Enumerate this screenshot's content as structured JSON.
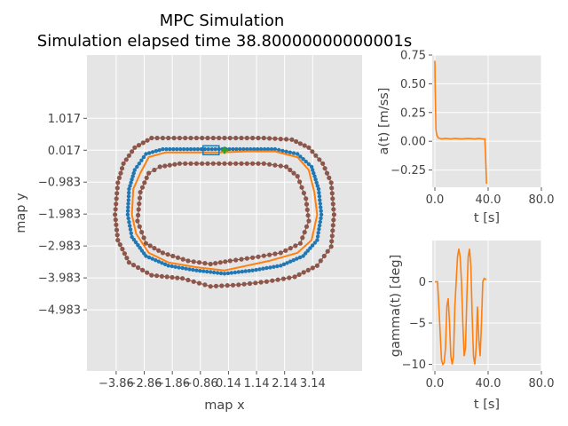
{
  "figure": {
    "title_line1": "MPC Simulation",
    "title_line2": "Simulation elapsed time 38.80000000000001s"
  },
  "colors": {
    "background": "#ffffff",
    "panel": "#e5e5e5",
    "grid": "#ffffff",
    "track_boundary": "#8c564b",
    "reference": "#1f77b4",
    "trajectory": "#ff7f0e",
    "vehicle": "#1f77b4",
    "target": "#2ca02c"
  },
  "chart_data": [
    {
      "id": "map",
      "type": "line",
      "xlabel": "map x",
      "ylabel": "map y",
      "xlim": [
        -4.9,
        4.9
      ],
      "ylim": [
        -6.9,
        3.0
      ],
      "xticks": [
        -3.86,
        -2.86,
        -1.86,
        -0.86,
        0.14,
        1.14,
        2.14,
        3.14
      ],
      "xtick_labels": [
        "−3.86",
        "−2.86",
        "−1.86",
        "−0.86",
        "0.14",
        "1.14",
        "2.14",
        "3.14"
      ],
      "yticks": [
        1.017,
        0.017,
        -0.983,
        -1.983,
        -2.983,
        -3.983,
        -4.983
      ],
      "ytick_labels": [
        "1.017",
        "0.017",
        "−0.983",
        "−1.983",
        "−2.983",
        "−3.983",
        "−4.983"
      ],
      "series": [
        {
          "role": "outer_boundary",
          "points": [
            [
              -3.6,
              -0.4
            ],
            [
              -3.2,
              0.1
            ],
            [
              -2.6,
              0.4
            ],
            [
              -1.6,
              0.4
            ],
            [
              -0.6,
              0.4
            ],
            [
              0.4,
              0.4
            ],
            [
              1.4,
              0.4
            ],
            [
              2.4,
              0.35
            ],
            [
              3.0,
              0.1
            ],
            [
              3.5,
              -0.4
            ],
            [
              3.8,
              -1.0
            ],
            [
              3.9,
              -2.0
            ],
            [
              3.8,
              -3.0
            ],
            [
              3.3,
              -3.6
            ],
            [
              2.5,
              -3.95
            ],
            [
              1.5,
              -4.1
            ],
            [
              0.5,
              -4.2
            ],
            [
              -0.5,
              -4.25
            ],
            [
              -1.5,
              -4.0
            ],
            [
              -2.6,
              -3.9
            ],
            [
              -3.4,
              -3.5
            ],
            [
              -3.8,
              -2.8
            ],
            [
              -3.9,
              -2.0
            ],
            [
              -3.8,
              -1.0
            ],
            [
              -3.6,
              -0.4
            ]
          ]
        },
        {
          "role": "inner_boundary",
          "points": [
            [
              -2.7,
              -0.7
            ],
            [
              -2.3,
              -0.5
            ],
            [
              -1.6,
              -0.4
            ],
            [
              -0.6,
              -0.4
            ],
            [
              0.4,
              -0.4
            ],
            [
              1.4,
              -0.4
            ],
            [
              2.2,
              -0.5
            ],
            [
              2.6,
              -0.8
            ],
            [
              2.9,
              -1.5
            ],
            [
              3.0,
              -2.2
            ],
            [
              2.7,
              -2.9
            ],
            [
              2.0,
              -3.2
            ],
            [
              1.0,
              -3.35
            ],
            [
              0.2,
              -3.45
            ],
            [
              -0.5,
              -3.55
            ],
            [
              -1.3,
              -3.45
            ],
            [
              -2.2,
              -3.2
            ],
            [
              -2.8,
              -2.9
            ],
            [
              -3.1,
              -2.2
            ],
            [
              -3.0,
              -1.3
            ],
            [
              -2.7,
              -0.7
            ]
          ]
        },
        {
          "role": "reference_path",
          "points": [
            [
              -3.2,
              -0.6
            ],
            [
              -2.8,
              -0.1
            ],
            [
              -2.2,
              0.05
            ],
            [
              -1.2,
              0.05
            ],
            [
              -0.2,
              0.05
            ],
            [
              0.8,
              0.05
            ],
            [
              1.8,
              0.05
            ],
            [
              2.6,
              -0.1
            ],
            [
              3.1,
              -0.5
            ],
            [
              3.35,
              -1.2
            ],
            [
              3.45,
              -2.0
            ],
            [
              3.3,
              -2.8
            ],
            [
              2.8,
              -3.3
            ],
            [
              2.0,
              -3.6
            ],
            [
              1.0,
              -3.75
            ],
            [
              0.0,
              -3.85
            ],
            [
              -1.0,
              -3.75
            ],
            [
              -2.0,
              -3.6
            ],
            [
              -2.8,
              -3.3
            ],
            [
              -3.3,
              -2.7
            ],
            [
              -3.45,
              -2.0
            ],
            [
              -3.4,
              -1.2
            ],
            [
              -3.2,
              -0.6
            ]
          ]
        },
        {
          "role": "driven_trajectory",
          "points": [
            [
              -3.0,
              -0.7
            ],
            [
              -2.7,
              -0.2
            ],
            [
              -2.1,
              -0.05
            ],
            [
              -1.2,
              -0.05
            ],
            [
              -0.2,
              -0.05
            ],
            [
              0.8,
              -0.02
            ],
            [
              1.8,
              -0.02
            ],
            [
              2.6,
              -0.2
            ],
            [
              3.0,
              -0.6
            ],
            [
              3.2,
              -1.3
            ],
            [
              3.3,
              -2.0
            ],
            [
              3.1,
              -2.8
            ],
            [
              2.6,
              -3.2
            ],
            [
              1.6,
              -3.45
            ],
            [
              0.8,
              -3.6
            ],
            [
              0.0,
              -3.75
            ],
            [
              -1.0,
              -3.65
            ],
            [
              -2.0,
              -3.5
            ],
            [
              -2.7,
              -3.2
            ],
            [
              -3.15,
              -2.6
            ],
            [
              -3.3,
              -2.0
            ],
            [
              -3.25,
              -1.2
            ],
            [
              -3.0,
              -0.7
            ]
          ]
        },
        {
          "role": "vehicle",
          "center": [
            -0.48,
            0.017
          ]
        },
        {
          "role": "target",
          "point": [
            0.0,
            0.017
          ]
        }
      ]
    },
    {
      "id": "accel",
      "type": "line",
      "xlabel": "t [s]",
      "ylabel": "a(t) [m/ss]",
      "xlim": [
        -2,
        80
      ],
      "ylim": [
        -0.4,
        0.75
      ],
      "xticks": [
        0,
        40,
        80
      ],
      "xtick_labels": [
        "0.0",
        "40.0",
        "80.0"
      ],
      "yticks": [
        0.75,
        0.5,
        0.25,
        0.0,
        -0.25
      ],
      "ytick_labels": [
        "0.75",
        "0.50",
        "0.25",
        "0.00",
        "−0.25"
      ],
      "series": [
        {
          "points": [
            [
              0,
              0.7
            ],
            [
              0.3,
              0.45
            ],
            [
              0.8,
              0.1
            ],
            [
              1.5,
              0.05
            ],
            [
              2.5,
              0.03
            ],
            [
              5,
              0.02
            ],
            [
              8,
              0.025
            ],
            [
              12,
              0.02
            ],
            [
              15,
              0.025
            ],
            [
              20,
              0.02
            ],
            [
              25,
              0.025
            ],
            [
              30,
              0.02
            ],
            [
              33,
              0.025
            ],
            [
              36,
              0.02
            ],
            [
              37.5,
              0.02
            ],
            [
              38,
              -0.1
            ],
            [
              38.8,
              -0.37
            ]
          ]
        }
      ]
    },
    {
      "id": "steer",
      "type": "line",
      "xlabel": "t [s]",
      "ylabel": "gamma(t) [deg]",
      "xlim": [
        -2,
        80
      ],
      "ylim": [
        -10.8,
        5
      ],
      "xticks": [
        0,
        40,
        80
      ],
      "xtick_labels": [
        "0.0",
        "40.0",
        "80.0"
      ],
      "yticks": [
        0,
        -5,
        -10
      ],
      "ytick_labels": [
        "0",
        "−5",
        "−10"
      ],
      "series": [
        {
          "points": [
            [
              0,
              0
            ],
            [
              2,
              0
            ],
            [
              3,
              -3
            ],
            [
              5,
              -9.5
            ],
            [
              6,
              -10
            ],
            [
              7,
              -9.8
            ],
            [
              8,
              -8
            ],
            [
              9,
              -3
            ],
            [
              10,
              -2
            ],
            [
              11,
              -5
            ],
            [
              12,
              -9
            ],
            [
              13,
              -10
            ],
            [
              14,
              -9
            ],
            [
              15,
              -3
            ],
            [
              16,
              0
            ],
            [
              17,
              3
            ],
            [
              18,
              4
            ],
            [
              19,
              3
            ],
            [
              20,
              0
            ],
            [
              21,
              -5
            ],
            [
              22,
              -9
            ],
            [
              23,
              -8
            ],
            [
              24,
              -2
            ],
            [
              25,
              3
            ],
            [
              26,
              4
            ],
            [
              27,
              2
            ],
            [
              28,
              -4
            ],
            [
              29,
              -9
            ],
            [
              30,
              -10
            ],
            [
              31,
              -8
            ],
            [
              32,
              -3
            ],
            [
              33,
              -7
            ],
            [
              34,
              -9
            ],
            [
              35,
              -5
            ],
            [
              36,
              0
            ],
            [
              37,
              0.4
            ],
            [
              38,
              0.3
            ],
            [
              38.8,
              0.3
            ]
          ]
        }
      ]
    }
  ]
}
